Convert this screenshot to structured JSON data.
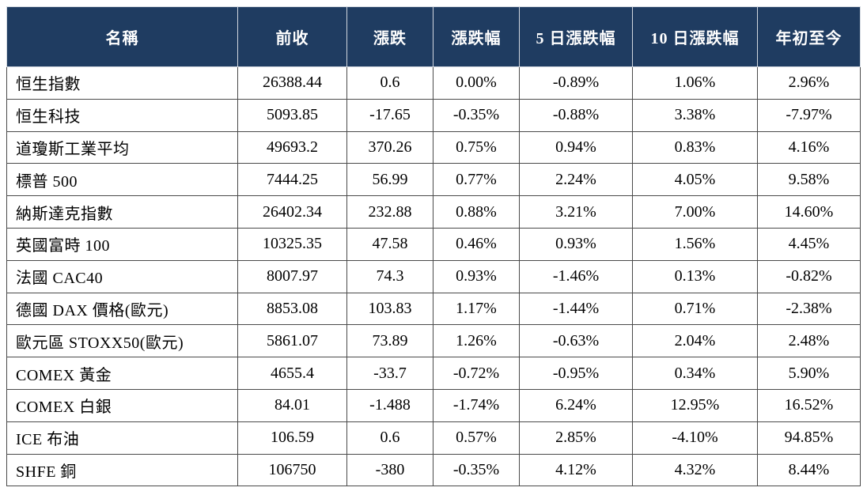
{
  "table": {
    "headers": [
      "名稱",
      "前收",
      "漲跌",
      "漲跌幅",
      "5 日漲跌幅",
      "10 日漲跌幅",
      "年初至今"
    ],
    "rows": [
      [
        "恒生指數",
        "26388.44",
        "0.6",
        "0.00%",
        "-0.89%",
        "1.06%",
        "2.96%"
      ],
      [
        "恒生科技",
        "5093.85",
        "-17.65",
        "-0.35%",
        "-0.88%",
        "3.38%",
        "-7.97%"
      ],
      [
        "道瓊斯工業平均",
        "49693.2",
        "370.26",
        "0.75%",
        "0.94%",
        "0.83%",
        "4.16%"
      ],
      [
        "標普 500",
        "7444.25",
        "56.99",
        "0.77%",
        "2.24%",
        "4.05%",
        "9.58%"
      ],
      [
        "納斯達克指數",
        "26402.34",
        "232.88",
        "0.88%",
        "3.21%",
        "7.00%",
        "14.60%"
      ],
      [
        "英國富時 100",
        "10325.35",
        "47.58",
        "0.46%",
        "0.93%",
        "1.56%",
        "4.45%"
      ],
      [
        "法國 CAC40",
        "8007.97",
        "74.3",
        "0.93%",
        "-1.46%",
        "0.13%",
        "-0.82%"
      ],
      [
        "德國 DAX 價格(歐元)",
        "8853.08",
        "103.83",
        "1.17%",
        "-1.44%",
        "0.71%",
        "-2.38%"
      ],
      [
        "歐元區 STOXX50(歐元)",
        "5861.07",
        "73.89",
        "1.26%",
        "-0.63%",
        "2.04%",
        "2.48%"
      ],
      [
        "COMEX 黃金",
        "4655.4",
        "-33.7",
        "-0.72%",
        "-0.95%",
        "0.34%",
        "5.90%"
      ],
      [
        "COMEX 白銀",
        "84.01",
        "-1.488",
        "-1.74%",
        "6.24%",
        "12.95%",
        "16.52%"
      ],
      [
        "ICE 布油",
        "106.59",
        "0.6",
        "0.57%",
        "2.85%",
        "-4.10%",
        "94.85%"
      ],
      [
        "SHFE 銅",
        "106750",
        "-380",
        "-0.35%",
        "4.12%",
        "4.32%",
        "8.44%"
      ]
    ]
  },
  "colors": {
    "header_background": "#1f3c61",
    "header_text": "#ffffff",
    "border": "#4a4a4a"
  }
}
